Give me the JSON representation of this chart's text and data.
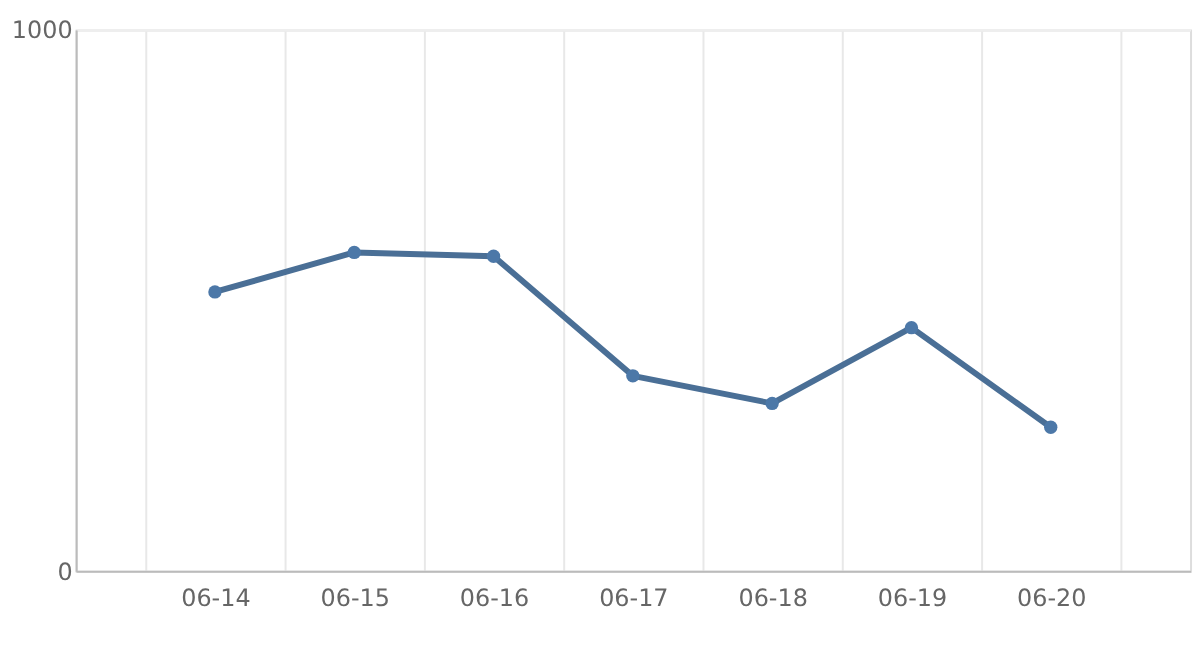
{
  "chart_data": {
    "type": "line",
    "categories": [
      "06-14",
      "06-15",
      "06-16",
      "06-17",
      "06-18",
      "06-19",
      "06-20"
    ],
    "series": [
      {
        "color": "#4a6f96",
        "values": [
          515,
          588,
          581,
          360,
          309,
          449,
          265
        ]
      }
    ],
    "ylim": [
      0,
      1000
    ],
    "yticks": [
      0,
      1000
    ],
    "grid": true,
    "marker": "circle",
    "line_style": "solid"
  }
}
